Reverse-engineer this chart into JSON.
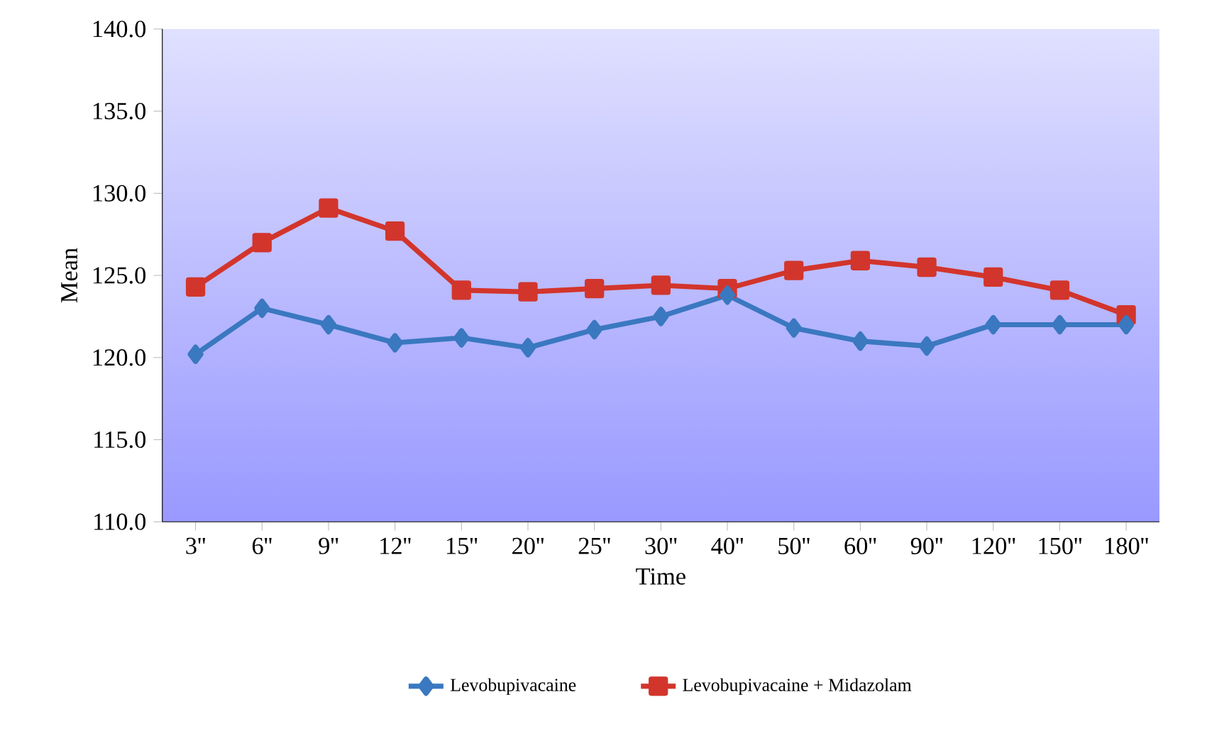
{
  "chart_data": {
    "type": "line",
    "xlabel": "Time",
    "ylabel": "Mean",
    "categories": [
      "3''",
      "6''",
      "9''",
      "12''",
      "15''",
      "20''",
      "25''",
      "30''",
      "40''",
      "50''",
      "60''",
      "90''",
      "120''",
      "150''",
      "180''"
    ],
    "ylim": [
      110,
      140
    ],
    "yticks": [
      {
        "value": 110,
        "label": "110.0"
      },
      {
        "value": 115,
        "label": "115.0"
      },
      {
        "value": 120,
        "label": "120.0"
      },
      {
        "value": 125,
        "label": "125.0"
      },
      {
        "value": 130,
        "label": "130.0"
      },
      {
        "value": 135,
        "label": "135.0"
      },
      {
        "value": 140,
        "label": "140.0"
      }
    ],
    "grid": false,
    "legend": "bottom",
    "series": [
      {
        "name": "Levobupivacaine",
        "color": "#3a78c0",
        "marker": "diamond",
        "values": [
          120.2,
          123.0,
          122.0,
          120.9,
          121.2,
          120.6,
          121.7,
          122.5,
          123.8,
          121.8,
          121.0,
          120.7,
          122.0,
          122.0,
          122.0
        ]
      },
      {
        "name": "Levobupivacaine + Midazolam",
        "color": "#d2352c",
        "marker": "square",
        "values": [
          124.3,
          127.0,
          129.1,
          127.7,
          124.1,
          124.0,
          124.2,
          124.4,
          124.2,
          125.3,
          125.9,
          125.5,
          124.9,
          124.1,
          122.6
        ]
      }
    ]
  }
}
